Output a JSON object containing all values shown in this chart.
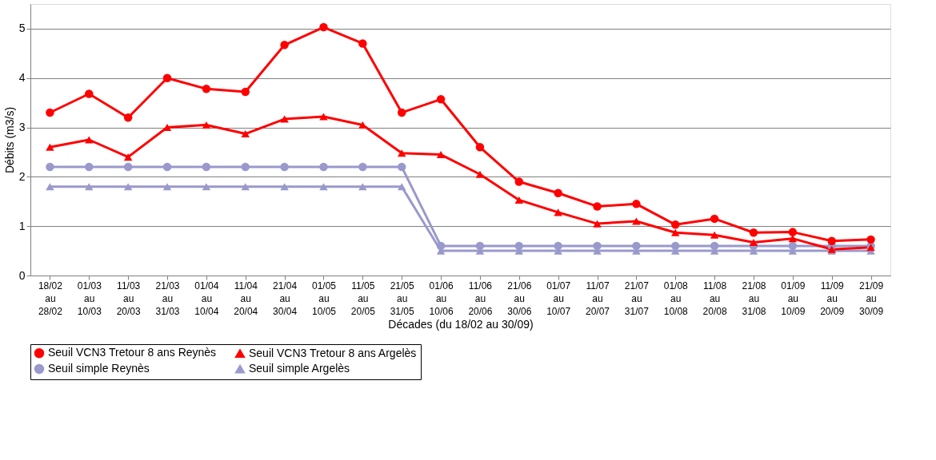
{
  "chart_data": {
    "type": "line",
    "xlabel": "Décades (du 18/02 au 30/09)",
    "ylabel": "Débits (m3/s)",
    "categories": [
      "18/02 au 28/02",
      "01/03 au 10/03",
      "11/03 au 20/03",
      "21/03 au 31/03",
      "01/04 au 10/04",
      "11/04 au 20/04",
      "21/04 au 30/04",
      "01/05 au 10/05",
      "11/05 au 20/05",
      "21/05 au 31/05",
      "01/06 au 10/06",
      "11/06 au 20/06",
      "21/06 au 30/06",
      "01/07 au 10/07",
      "11/07 au 20/07",
      "21/07 au 31/07",
      "01/08 au 10/08",
      "11/08 au 20/08",
      "21/08 au 31/08",
      "01/09 au 10/09",
      "11/09 au 20/09",
      "21/09 au 30/09"
    ],
    "ylim": [
      0,
      5.5
    ],
    "yticks": [
      0,
      1,
      2,
      3,
      4,
      5
    ],
    "grid": "y",
    "legend": "bottom",
    "line_style": "solid",
    "series": [
      {
        "name": "Seuil VCN3 Tretour 8 ans Reynès",
        "color": "#ff0000",
        "marker": "circle",
        "values": [
          3.3,
          3.68,
          3.2,
          4.0,
          3.78,
          3.72,
          4.67,
          5.03,
          4.7,
          3.3,
          3.57,
          2.6,
          1.9,
          1.67,
          1.4,
          1.45,
          1.03,
          1.15,
          0.87,
          0.88,
          0.7,
          0.73
        ]
      },
      {
        "name": "Seuil VCN3 Tretour 8 ans Argelès",
        "color": "#ff0000",
        "marker": "triangle",
        "values": [
          2.6,
          2.75,
          2.4,
          3.0,
          3.05,
          2.87,
          3.17,
          3.22,
          3.05,
          2.48,
          2.45,
          2.05,
          1.53,
          1.28,
          1.05,
          1.1,
          0.87,
          0.82,
          0.67,
          0.75,
          0.53,
          0.57
        ]
      },
      {
        "name": "Seuil simple Reynès",
        "color": "#9999cc",
        "marker": "circle",
        "values": [
          2.2,
          2.2,
          2.2,
          2.2,
          2.2,
          2.2,
          2.2,
          2.2,
          2.2,
          2.2,
          0.6,
          0.6,
          0.6,
          0.6,
          0.6,
          0.6,
          0.6,
          0.6,
          0.6,
          0.6,
          0.6,
          0.6
        ]
      },
      {
        "name": "Seuil simple Argelès",
        "color": "#9999cc",
        "marker": "triangle",
        "values": [
          1.8,
          1.8,
          1.8,
          1.8,
          1.8,
          1.8,
          1.8,
          1.8,
          1.8,
          1.8,
          0.5,
          0.5,
          0.5,
          0.5,
          0.5,
          0.5,
          0.5,
          0.5,
          0.5,
          0.5,
          0.5,
          0.5
        ]
      }
    ]
  }
}
